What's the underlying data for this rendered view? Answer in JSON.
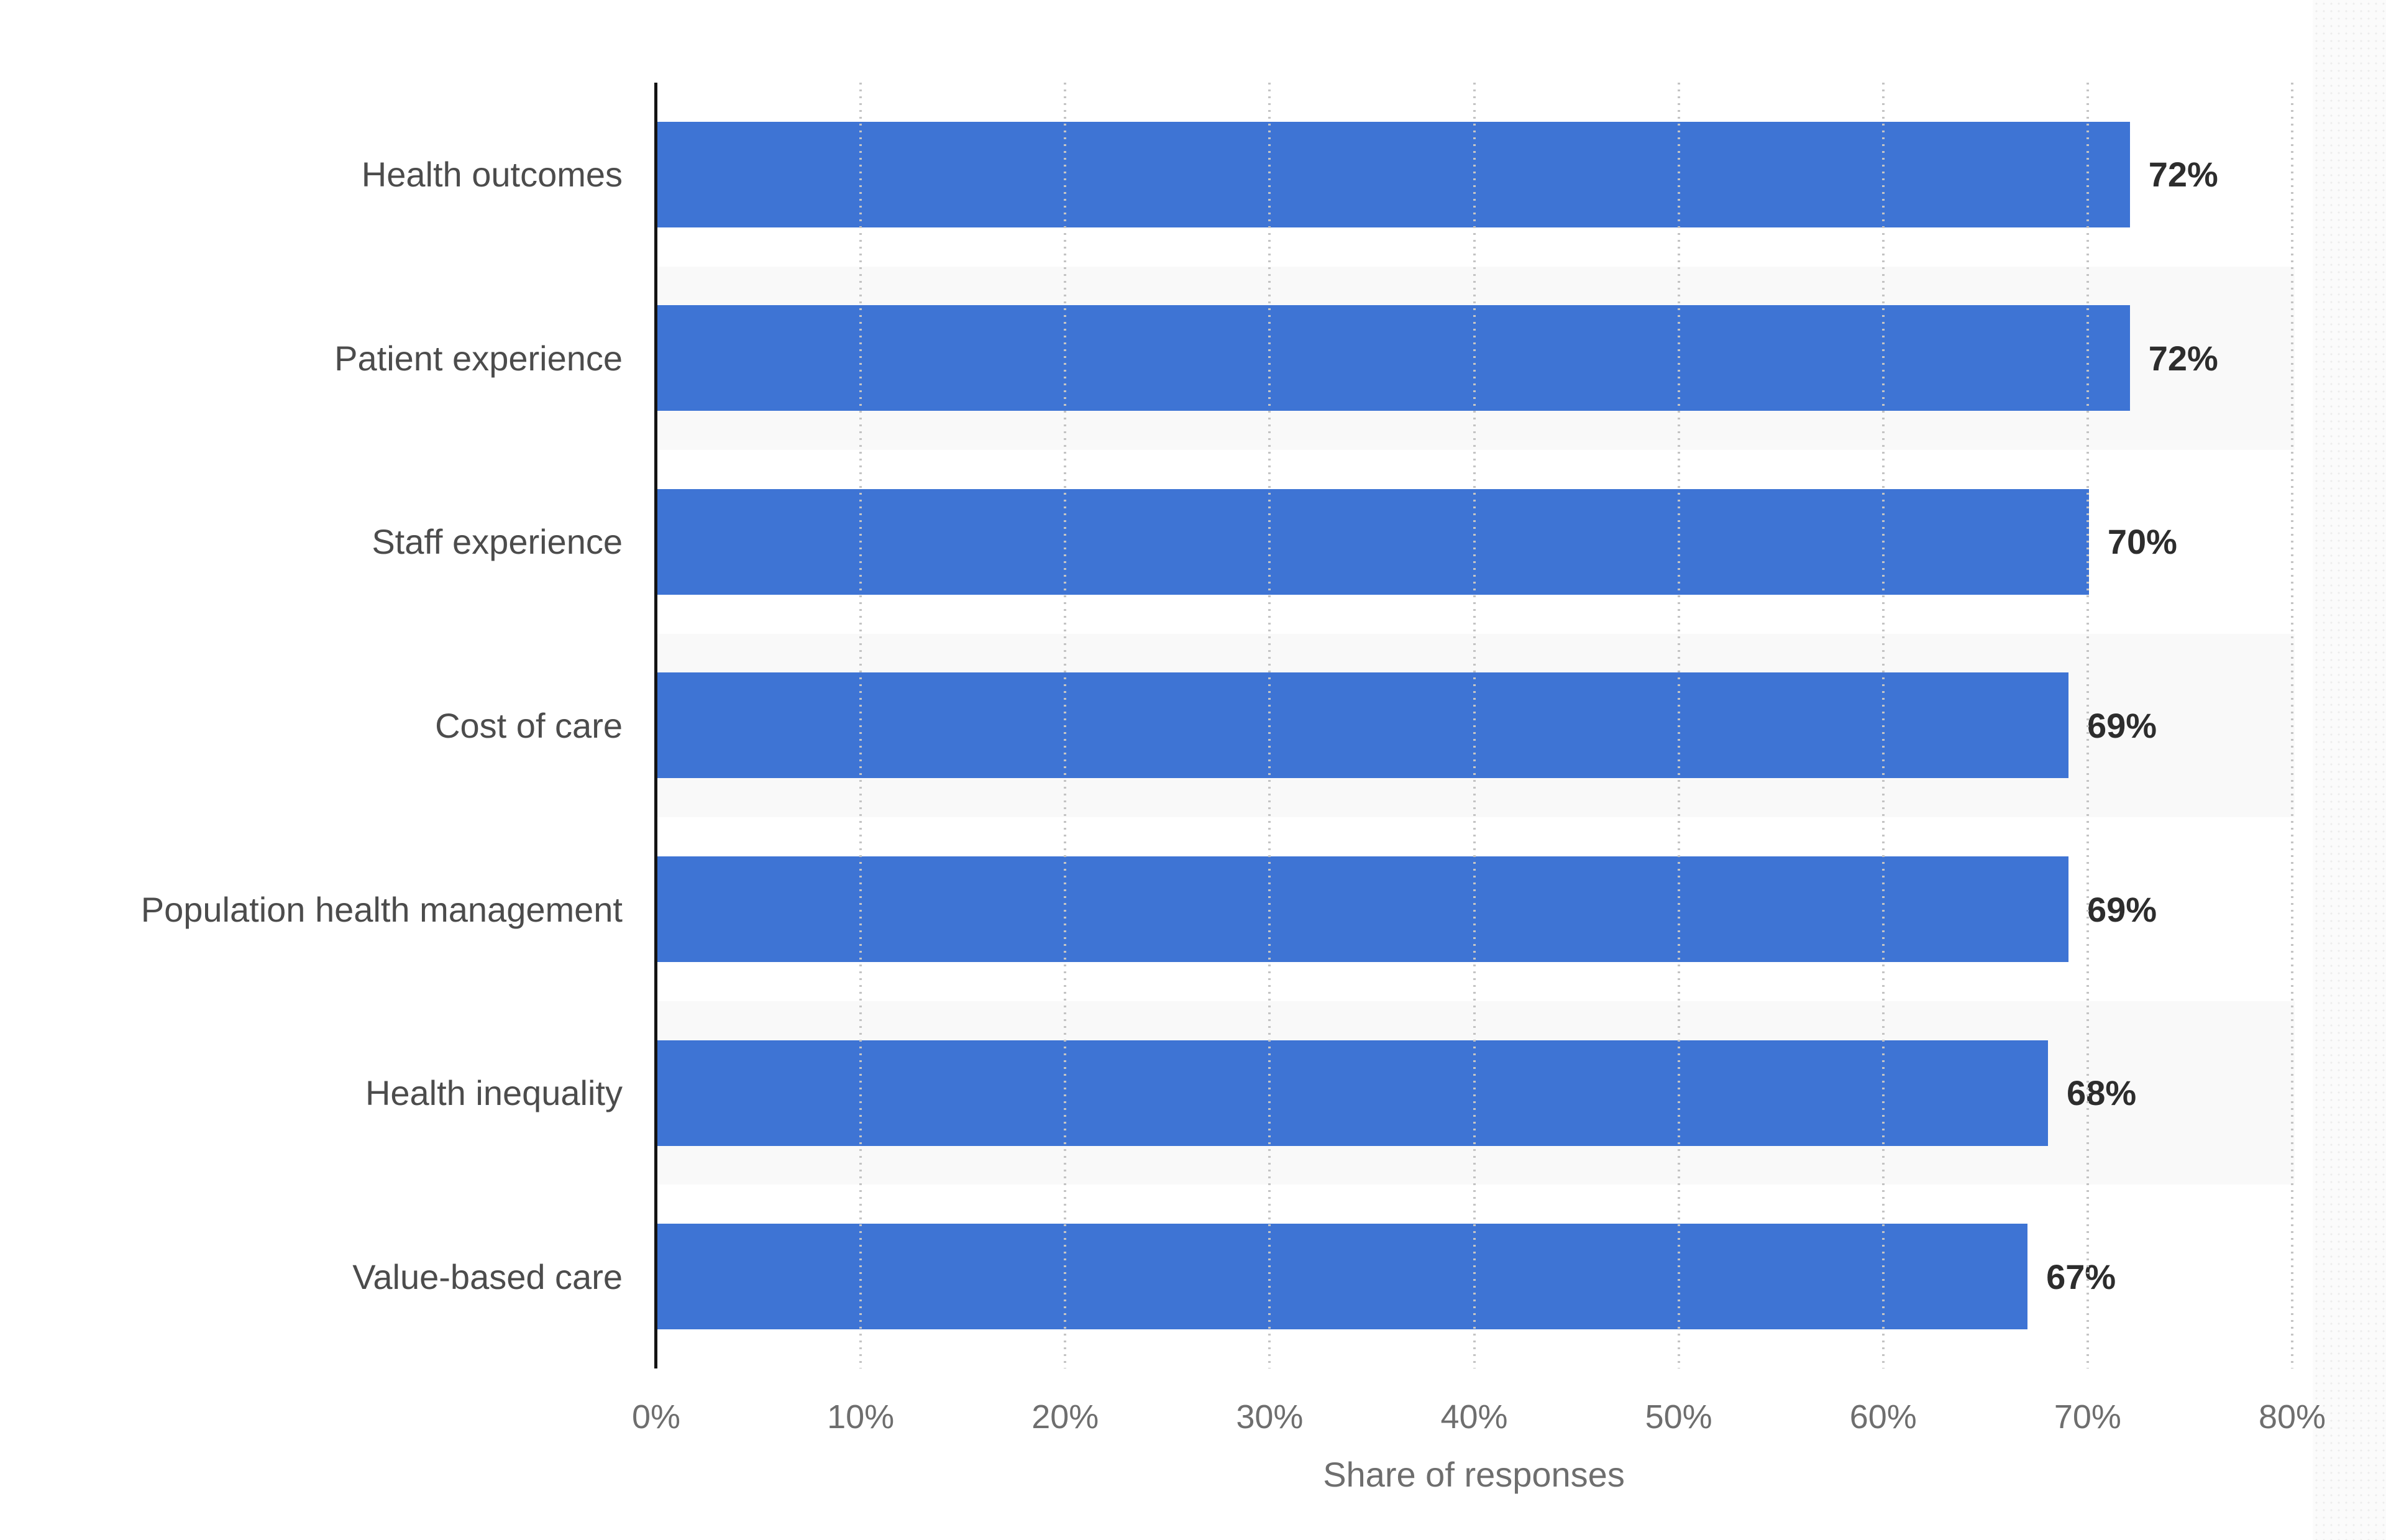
{
  "chart_data": {
    "type": "bar",
    "orientation": "horizontal",
    "categories": [
      "Health outcomes",
      "Patient experience",
      "Staff experience",
      "Cost of care",
      "Population health management",
      "Health inequality",
      "Value-based care"
    ],
    "values": [
      72,
      72,
      70,
      69,
      69,
      68,
      67
    ],
    "value_labels": [
      "72%",
      "72%",
      "70%",
      "69%",
      "69%",
      "68%",
      "67%"
    ],
    "xlabel": "Share of responses",
    "ylabel": "",
    "x_ticks": [
      "0%",
      "10%",
      "20%",
      "30%",
      "40%",
      "50%",
      "60%",
      "70%",
      "80%"
    ],
    "xlim": [
      0,
      80
    ],
    "grid": "vertical-dotted",
    "legend": "none",
    "title": "",
    "bar_color": "#3E74D4",
    "row_band_color": "#f9f9f9",
    "gridline_color": "#c4c4c4",
    "axis_line_color": "#141414",
    "category_label_color": "#4c4c4c",
    "value_label_color": "#2d2d2d",
    "tick_label_color": "#6e6e6e"
  }
}
